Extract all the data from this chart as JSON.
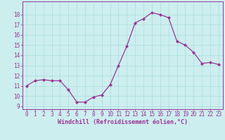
{
  "x": [
    0,
    1,
    2,
    3,
    4,
    5,
    6,
    7,
    8,
    9,
    10,
    11,
    12,
    13,
    14,
    15,
    16,
    17,
    18,
    19,
    20,
    21,
    22,
    23
  ],
  "y": [
    11.0,
    11.5,
    11.6,
    11.5,
    11.5,
    10.6,
    9.4,
    9.4,
    9.9,
    10.1,
    11.1,
    13.0,
    14.9,
    17.2,
    17.6,
    18.2,
    18.0,
    17.7,
    15.4,
    15.0,
    14.3,
    13.2,
    13.3,
    13.1
  ],
  "line_color": "#993399",
  "marker": "D",
  "marker_size": 2.0,
  "bg_color": "#cceeee",
  "grid_color": "#aadddd",
  "xlabel": "Windchill (Refroidissement éolien,°C)",
  "xlabel_color": "#993399",
  "tick_color": "#993399",
  "ylim_min": 9,
  "ylim_max": 19,
  "xlim_min": -0.5,
  "xlim_max": 23.5,
  "yticks": [
    9,
    10,
    11,
    12,
    13,
    14,
    15,
    16,
    17,
    18
  ],
  "xticks": [
    0,
    1,
    2,
    3,
    4,
    5,
    6,
    7,
    8,
    9,
    10,
    11,
    12,
    13,
    14,
    15,
    16,
    17,
    18,
    19,
    20,
    21,
    22,
    23
  ],
  "spine_color": "#993399",
  "tick_fontsize": 5.5,
  "xlabel_fontsize": 6.0
}
